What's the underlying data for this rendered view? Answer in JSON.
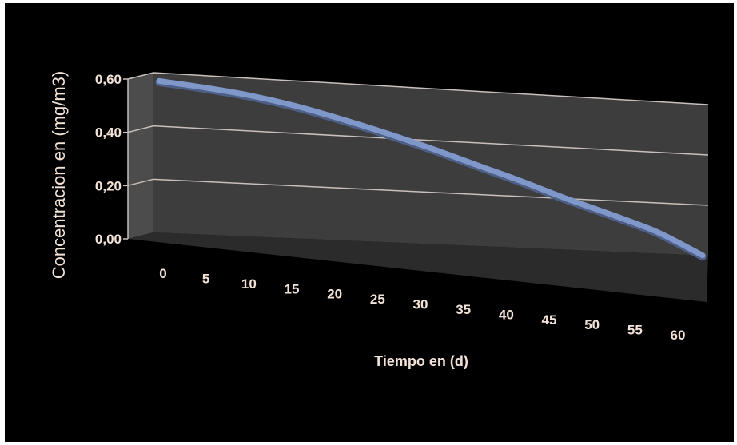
{
  "chart_data": {
    "type": "line",
    "style": "3d",
    "xlabel": "Tiempo en (d)",
    "ylabel": "Concentracion en (mg/m3)",
    "categories": [
      "0",
      "5",
      "10",
      "15",
      "20",
      "25",
      "30",
      "35",
      "40",
      "45",
      "50",
      "55",
      "60"
    ],
    "y_tick_labels": [
      "0,00",
      "0,20",
      "0,40",
      "0,60"
    ],
    "ylim": [
      0,
      0.6
    ],
    "grid": true,
    "series": [
      {
        "color": "#7f97c9",
        "values": [
          0.57,
          0.555,
          0.535,
          0.505,
          0.465,
          0.42,
          0.37,
          0.315,
          0.26,
          0.2,
          0.145,
          0.085,
          0.0
        ]
      }
    ]
  },
  "colors": {
    "background": "#000000",
    "back_wall": "#3d3d3d",
    "side_wall": "#4c4c4c",
    "floor": "#2b2b2b",
    "gridline": "#c8c0bc",
    "text": "#f2e2d8",
    "line": "#7f97c9"
  }
}
